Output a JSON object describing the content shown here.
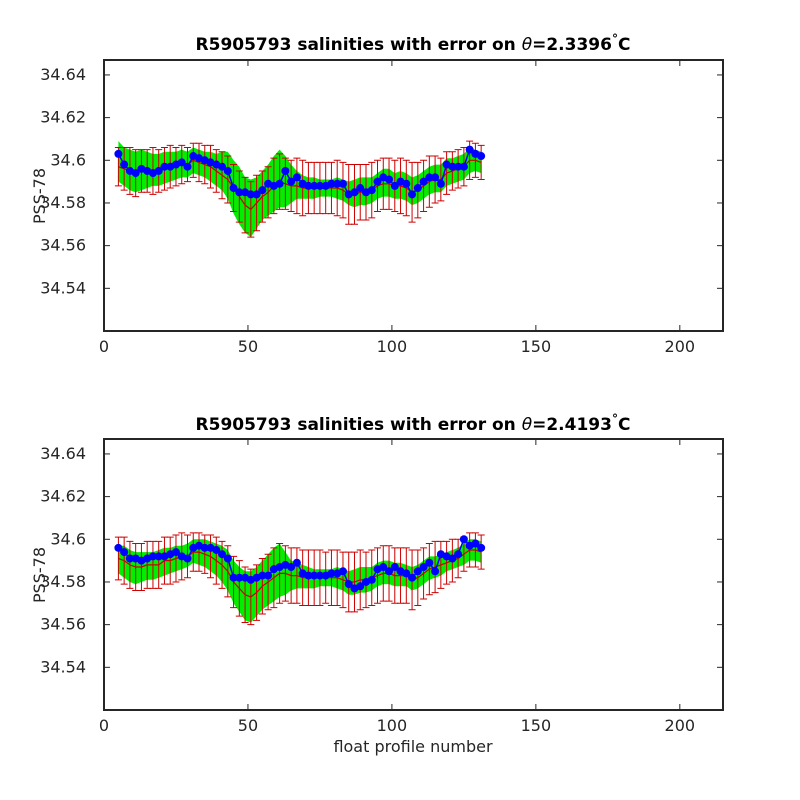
{
  "chart_data": [
    {
      "type": "line",
      "title_prefix": "R5905793 salinities with error on ",
      "title_theta": "θ",
      "title_value": "=2.3396",
      "title_deg": "°",
      "title_unit": "C",
      "xlabel": "",
      "ylabel": "PSS-78",
      "xlim": [
        0,
        215
      ],
      "ylim": [
        34.52,
        34.647
      ],
      "xticks": [
        "0",
        "50",
        "100",
        "150",
        "200"
      ],
      "yticks": [
        "34.54",
        "34.56",
        "34.58",
        "34.6",
        "34.62",
        "34.64"
      ],
      "grid": false,
      "colors": {
        "points": "#0000ff",
        "errorbars": "#cc0000",
        "band": "#00ee00",
        "frame": "#262626"
      },
      "series": [
        {
          "x": [
            5,
            7,
            9,
            11,
            13,
            15,
            17,
            19,
            21,
            23,
            25,
            27,
            29,
            31,
            33,
            35,
            37,
            39,
            41,
            43,
            45,
            47,
            49,
            51,
            53,
            55,
            57,
            59,
            61,
            63,
            65,
            67,
            69,
            71,
            73,
            75,
            77,
            79,
            81,
            83,
            85,
            87,
            89,
            91,
            93,
            95,
            97,
            99,
            101,
            103,
            105,
            107,
            109,
            111,
            113,
            115,
            117,
            119,
            121,
            123,
            125,
            127,
            129,
            131
          ],
          "y": [
            34.603,
            34.598,
            34.595,
            34.594,
            34.596,
            34.595,
            34.594,
            34.595,
            34.597,
            34.597,
            34.598,
            34.599,
            34.597,
            34.602,
            34.601,
            34.6,
            34.599,
            34.598,
            34.597,
            34.595,
            34.587,
            34.585,
            34.585,
            34.584,
            34.584,
            34.586,
            34.589,
            34.588,
            34.589,
            34.595,
            34.59,
            34.592,
            34.589,
            34.588,
            34.588,
            34.588,
            34.588,
            34.589,
            34.589,
            34.589,
            34.584,
            34.585,
            34.587,
            34.585,
            34.586,
            34.59,
            34.592,
            34.591,
            34.588,
            34.59,
            34.589,
            34.584,
            34.587,
            34.59,
            34.592,
            34.592,
            34.589,
            34.598,
            34.597,
            34.597,
            34.597,
            34.605,
            34.603,
            34.602
          ],
          "err": [
            0.009,
            0.01,
            0.011,
            0.011,
            0.01,
            0.01,
            0.011,
            0.01,
            0.01,
            0.01,
            0.009,
            0.009,
            0.008,
            0.008,
            0.009,
            0.009,
            0.01,
            0.01,
            0.011,
            0.011,
            0.011,
            0.012,
            0.013,
            0.013,
            0.013,
            0.012,
            0.012,
            0.013,
            0.013,
            0.012,
            0.012,
            0.013,
            0.013,
            0.012,
            0.012,
            0.012,
            0.012,
            0.012,
            0.013,
            0.013,
            0.014,
            0.014,
            0.013,
            0.013,
            0.013,
            0.012,
            0.012,
            0.012,
            0.012,
            0.013,
            0.013,
            0.014,
            0.013,
            0.012,
            0.012,
            0.011,
            0.01,
            0.01,
            0.009,
            0.009,
            0.009,
            0.009,
            0.008,
            0.008
          ],
          "band_upper": [
            34.609,
            34.606,
            34.605,
            34.604,
            34.605,
            34.604,
            34.603,
            34.603,
            34.604,
            34.604,
            34.604,
            34.605,
            34.604,
            34.606,
            34.605,
            34.604,
            34.604,
            34.603,
            34.604,
            34.604,
            34.6,
            34.597,
            34.592,
            34.591,
            34.592,
            34.595,
            34.598,
            34.602,
            34.605,
            34.602,
            34.598,
            34.595,
            34.593,
            34.592,
            34.592,
            34.591,
            34.591,
            34.591,
            34.592,
            34.591,
            34.59,
            34.591,
            34.592,
            34.592,
            34.592,
            34.594,
            34.596,
            34.596,
            34.594,
            34.595,
            34.594,
            34.592,
            34.593,
            34.595,
            34.597,
            34.598,
            34.598,
            34.601,
            34.601,
            34.602,
            34.603,
            34.606,
            34.605,
            34.604
          ],
          "band_lower": [
            34.59,
            34.588,
            34.586,
            34.585,
            34.586,
            34.587,
            34.588,
            34.588,
            34.589,
            34.59,
            34.591,
            34.592,
            34.592,
            34.594,
            34.593,
            34.592,
            34.59,
            34.588,
            34.586,
            34.582,
            34.575,
            34.57,
            34.566,
            34.564,
            34.568,
            34.572,
            34.574,
            34.576,
            34.578,
            34.578,
            34.58,
            34.582,
            34.582,
            34.582,
            34.582,
            34.583,
            34.583,
            34.583,
            34.582,
            34.581,
            34.579,
            34.578,
            34.579,
            34.579,
            34.58,
            34.582,
            34.583,
            34.583,
            34.582,
            34.582,
            34.581,
            34.579,
            34.58,
            34.582,
            34.584,
            34.585,
            34.585,
            34.588,
            34.589,
            34.59,
            34.591,
            34.594,
            34.595,
            34.594
          ],
          "mid": [
            34.597,
            34.596,
            34.595,
            34.594,
            34.595,
            34.595,
            34.595,
            34.595,
            34.596,
            34.597,
            34.597,
            34.598,
            34.598,
            34.6,
            34.599,
            34.598,
            34.597,
            34.595,
            34.593,
            34.591,
            34.587,
            34.583,
            34.579,
            34.577,
            34.58,
            34.583,
            34.585,
            34.588,
            34.59,
            34.589,
            34.588,
            34.588,
            34.587,
            34.587,
            34.587,
            34.587,
            34.587,
            34.587,
            34.587,
            34.586,
            34.584,
            34.584,
            34.585,
            34.585,
            34.586,
            34.588,
            34.589,
            34.589,
            34.588,
            34.588,
            34.587,
            34.585,
            34.586,
            34.588,
            34.59,
            34.591,
            34.591,
            34.594,
            34.595,
            34.596,
            34.597,
            34.6,
            34.6,
            34.599
          ]
        }
      ]
    },
    {
      "type": "line",
      "title_prefix": "R5905793 salinities with error on ",
      "title_theta": "θ",
      "title_value": "=2.4193",
      "title_deg": "°",
      "title_unit": "C",
      "xlabel": "float profile number",
      "ylabel": "PSS-78",
      "xlim": [
        0,
        215
      ],
      "ylim": [
        34.52,
        34.647
      ],
      "xticks": [
        "0",
        "50",
        "100",
        "150",
        "200"
      ],
      "yticks": [
        "34.54",
        "34.56",
        "34.58",
        "34.6",
        "34.62",
        "34.64"
      ],
      "grid": false,
      "colors": {
        "points": "#0000ff",
        "errorbars": "#cc0000",
        "band": "#00ee00",
        "frame": "#262626"
      },
      "series": [
        {
          "x": [
            5,
            7,
            9,
            11,
            13,
            15,
            17,
            19,
            21,
            23,
            25,
            27,
            29,
            31,
            33,
            35,
            37,
            39,
            41,
            43,
            45,
            47,
            49,
            51,
            53,
            55,
            57,
            59,
            61,
            63,
            65,
            67,
            69,
            71,
            73,
            75,
            77,
            79,
            81,
            83,
            85,
            87,
            89,
            91,
            93,
            95,
            97,
            99,
            101,
            103,
            105,
            107,
            109,
            111,
            113,
            115,
            117,
            119,
            121,
            123,
            125,
            127,
            129,
            131
          ],
          "y": [
            34.596,
            34.594,
            34.591,
            34.591,
            34.59,
            34.591,
            34.592,
            34.592,
            34.592,
            34.593,
            34.594,
            34.592,
            34.591,
            34.596,
            34.597,
            34.596,
            34.596,
            34.595,
            34.593,
            34.591,
            34.582,
            34.582,
            34.582,
            34.581,
            34.582,
            34.583,
            34.583,
            34.586,
            34.587,
            34.588,
            34.587,
            34.589,
            34.584,
            34.583,
            34.583,
            34.583,
            34.583,
            34.584,
            34.584,
            34.585,
            34.579,
            34.577,
            34.578,
            34.58,
            34.581,
            34.586,
            34.587,
            34.585,
            34.587,
            34.585,
            34.584,
            34.582,
            34.585,
            34.587,
            34.589,
            34.585,
            34.593,
            34.592,
            34.591,
            34.593,
            34.6,
            34.597,
            34.598,
            34.596
          ],
          "err": [
            0.01,
            0.011,
            0.011,
            0.011,
            0.011,
            0.011,
            0.011,
            0.011,
            0.011,
            0.011,
            0.011,
            0.011,
            0.01,
            0.009,
            0.009,
            0.009,
            0.01,
            0.011,
            0.011,
            0.012,
            0.012,
            0.013,
            0.013,
            0.013,
            0.013,
            0.013,
            0.013,
            0.014,
            0.014,
            0.013,
            0.013,
            0.013,
            0.013,
            0.013,
            0.013,
            0.013,
            0.012,
            0.013,
            0.013,
            0.013,
            0.014,
            0.014,
            0.014,
            0.013,
            0.013,
            0.013,
            0.013,
            0.013,
            0.013,
            0.013,
            0.013,
            0.014,
            0.013,
            0.012,
            0.012,
            0.012,
            0.011,
            0.01,
            0.01,
            0.009,
            0.008,
            0.008,
            0.008,
            0.008
          ],
          "band_upper": [
            34.597,
            34.597,
            34.595,
            34.594,
            34.594,
            34.594,
            34.594,
            34.595,
            34.596,
            34.596,
            34.597,
            34.597,
            34.598,
            34.6,
            34.6,
            34.6,
            34.599,
            34.598,
            34.597,
            34.595,
            34.59,
            34.587,
            34.585,
            34.585,
            34.587,
            34.59,
            34.593,
            34.596,
            34.598,
            34.594,
            34.59,
            34.589,
            34.588,
            34.587,
            34.586,
            34.586,
            34.586,
            34.586,
            34.587,
            34.586,
            34.585,
            34.586,
            34.587,
            34.587,
            34.587,
            34.589,
            34.59,
            34.59,
            34.589,
            34.589,
            34.588,
            34.587,
            34.588,
            34.59,
            34.592,
            34.592,
            34.593,
            34.594,
            34.595,
            34.596,
            34.598,
            34.6,
            34.6,
            34.599
          ],
          "band_lower": [
            34.584,
            34.582,
            34.58,
            34.579,
            34.58,
            34.581,
            34.581,
            34.582,
            34.583,
            34.584,
            34.585,
            34.586,
            34.587,
            34.589,
            34.588,
            34.587,
            34.585,
            34.583,
            34.58,
            34.576,
            34.57,
            34.566,
            34.562,
            34.561,
            34.564,
            34.567,
            34.569,
            34.571,
            34.573,
            34.574,
            34.576,
            34.577,
            34.577,
            34.577,
            34.577,
            34.578,
            34.578,
            34.578,
            34.577,
            34.576,
            34.574,
            34.574,
            34.575,
            34.575,
            34.576,
            34.578,
            34.579,
            34.579,
            34.578,
            34.578,
            34.578,
            34.576,
            34.577,
            34.579,
            34.581,
            34.582,
            34.583,
            34.585,
            34.586,
            34.587,
            34.588,
            34.59,
            34.59,
            34.589
          ],
          "mid": [
            34.591,
            34.59,
            34.588,
            34.587,
            34.587,
            34.588,
            34.588,
            34.588,
            34.59,
            34.59,
            34.591,
            34.592,
            34.592,
            34.594,
            34.594,
            34.593,
            34.592,
            34.59,
            34.588,
            34.585,
            34.58,
            34.577,
            34.574,
            34.573,
            34.575,
            34.578,
            34.58,
            34.582,
            34.584,
            34.584,
            34.583,
            34.583,
            34.582,
            34.582,
            34.582,
            34.582,
            34.582,
            34.582,
            34.582,
            34.581,
            34.58,
            34.58,
            34.581,
            34.581,
            34.582,
            34.583,
            34.584,
            34.584,
            34.583,
            34.583,
            34.583,
            34.581,
            34.582,
            34.584,
            34.586,
            34.587,
            34.588,
            34.589,
            34.59,
            34.591,
            34.593,
            34.595,
            34.595,
            34.594
          ]
        }
      ]
    }
  ]
}
